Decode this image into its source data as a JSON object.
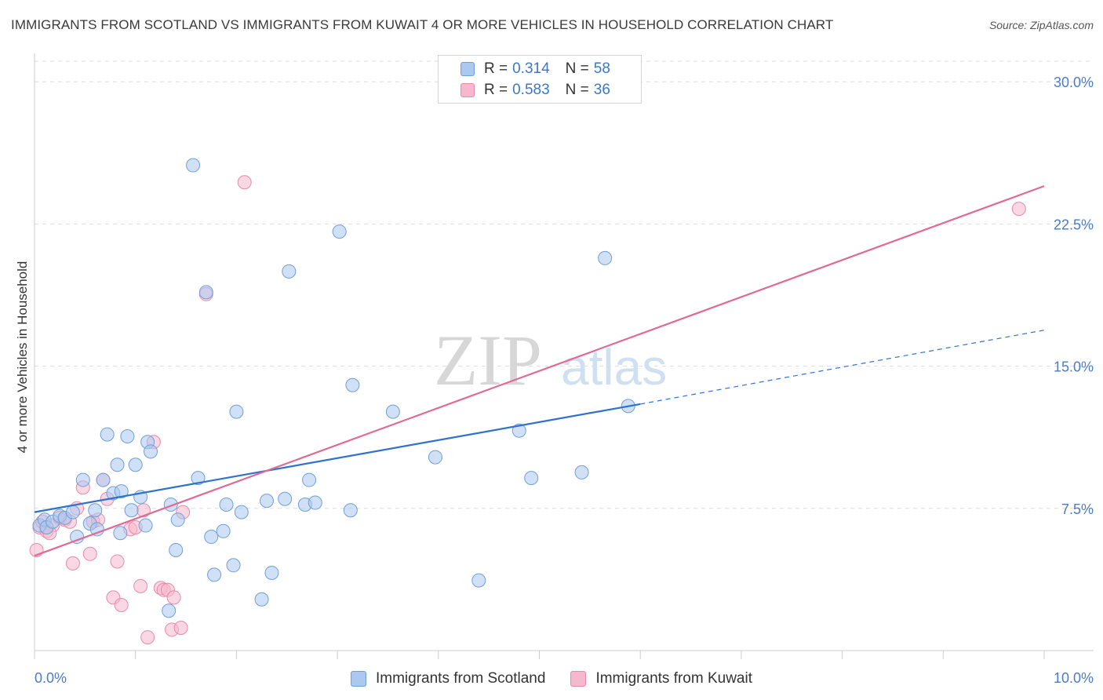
{
  "header": {
    "title": "IMMIGRANTS FROM SCOTLAND VS IMMIGRANTS FROM KUWAIT 4 OR MORE VEHICLES IN HOUSEHOLD CORRELATION CHART",
    "source": "Source: ZipAtlas.com"
  },
  "legend": {
    "r_label": "R =",
    "n_label": "N =",
    "scotland": {
      "r": "0.314",
      "n": "58"
    },
    "kuwait": {
      "r": "0.583",
      "n": "36"
    }
  },
  "watermark": {
    "zip": "ZIP",
    "atlas": "atlas"
  },
  "colors": {
    "scotland_fill": "#aac8f0",
    "scotland_stroke": "#6f9fd8",
    "scotland_line": "#2f72cc",
    "kuwait_fill": "#f6b8cc",
    "kuwait_stroke": "#e98aa8",
    "kuwait_line": "#e06a96",
    "grid": "#dddddd",
    "tick_text": "#4a7cc7"
  },
  "chart_data": {
    "type": "scatter",
    "title": "IMMIGRANTS FROM SCOTLAND VS IMMIGRANTS FROM KUWAIT 4 OR MORE VEHICLES IN HOUSEHOLD CORRELATION CHART",
    "xlabel": "",
    "ylabel": "4 or more Vehicles in Household",
    "xlim": [
      0,
      10
    ],
    "ylim": [
      0,
      31.5
    ],
    "x_tick_labels": [
      "0.0%",
      "10.0%"
    ],
    "y_ticks": [
      7.5,
      15.0,
      22.5,
      30.0
    ],
    "y_tick_labels": [
      "7.5%",
      "15.0%",
      "22.5%",
      "30.0%"
    ],
    "series": [
      {
        "name": "Immigrants from Scotland",
        "points": [
          [
            0.05,
            6.6
          ],
          [
            0.1,
            6.9
          ],
          [
            0.12,
            6.5
          ],
          [
            0.18,
            6.8
          ],
          [
            0.25,
            7.1
          ],
          [
            0.3,
            7.0
          ],
          [
            0.38,
            7.3
          ],
          [
            0.42,
            6.0
          ],
          [
            0.48,
            9.0
          ],
          [
            0.55,
            6.7
          ],
          [
            0.6,
            7.4
          ],
          [
            0.62,
            6.4
          ],
          [
            0.68,
            9.0
          ],
          [
            0.72,
            11.4
          ],
          [
            0.78,
            8.3
          ],
          [
            0.82,
            9.8
          ],
          [
            0.86,
            8.4
          ],
          [
            0.92,
            11.3
          ],
          [
            0.96,
            7.4
          ],
          [
            1.0,
            9.8
          ],
          [
            1.05,
            8.1
          ],
          [
            1.1,
            6.6
          ],
          [
            1.12,
            11.0
          ],
          [
            1.15,
            10.5
          ],
          [
            1.35,
            7.7
          ],
          [
            1.4,
            5.3
          ],
          [
            1.42,
            6.9
          ],
          [
            1.57,
            25.6
          ],
          [
            1.62,
            9.1
          ],
          [
            1.7,
            18.9
          ],
          [
            1.75,
            6.0
          ],
          [
            1.78,
            4.0
          ],
          [
            1.87,
            6.3
          ],
          [
            1.9,
            7.7
          ],
          [
            1.97,
            4.5
          ],
          [
            2.0,
            12.6
          ],
          [
            2.05,
            7.3
          ],
          [
            2.25,
            2.7
          ],
          [
            2.3,
            7.9
          ],
          [
            2.35,
            4.1
          ],
          [
            2.48,
            8.0
          ],
          [
            2.52,
            20.0
          ],
          [
            2.68,
            7.7
          ],
          [
            2.72,
            9.0
          ],
          [
            2.78,
            7.8
          ],
          [
            3.02,
            22.1
          ],
          [
            3.13,
            7.4
          ],
          [
            3.15,
            14.0
          ],
          [
            3.55,
            12.6
          ],
          [
            3.97,
            10.2
          ],
          [
            4.4,
            3.7
          ],
          [
            4.8,
            11.6
          ],
          [
            4.92,
            9.1
          ],
          [
            5.42,
            9.4
          ],
          [
            5.65,
            20.7
          ],
          [
            5.88,
            12.9
          ],
          [
            1.33,
            2.1
          ],
          [
            0.85,
            6.2
          ]
        ],
        "regression": {
          "x0": 0,
          "y0": 7.3,
          "x1": 6.0,
          "y1": 13.0,
          "dashed_to_x": 10,
          "dashed_to_y": 16.9
        }
      },
      {
        "name": "Immigrants from Kuwait",
        "points": [
          [
            0.02,
            5.3
          ],
          [
            0.05,
            6.5
          ],
          [
            0.08,
            6.8
          ],
          [
            0.12,
            6.3
          ],
          [
            0.18,
            6.6
          ],
          [
            0.25,
            7.0
          ],
          [
            0.3,
            6.9
          ],
          [
            0.35,
            6.8
          ],
          [
            0.38,
            4.6
          ],
          [
            0.42,
            7.5
          ],
          [
            0.48,
            8.6
          ],
          [
            0.55,
            5.1
          ],
          [
            0.58,
            6.8
          ],
          [
            0.63,
            6.9
          ],
          [
            0.68,
            9.0
          ],
          [
            0.72,
            8.0
          ],
          [
            0.78,
            2.8
          ],
          [
            0.82,
            4.7
          ],
          [
            0.86,
            2.4
          ],
          [
            0.95,
            6.4
          ],
          [
            1.0,
            6.5
          ],
          [
            1.05,
            3.4
          ],
          [
            1.08,
            7.4
          ],
          [
            1.12,
            0.7
          ],
          [
            1.18,
            11.0
          ],
          [
            1.25,
            3.3
          ],
          [
            1.28,
            3.2
          ],
          [
            1.32,
            3.2
          ],
          [
            1.36,
            1.1
          ],
          [
            1.38,
            2.8
          ],
          [
            1.45,
            1.2
          ],
          [
            1.47,
            7.3
          ],
          [
            1.7,
            18.8
          ],
          [
            2.08,
            24.7
          ],
          [
            9.75,
            23.3
          ],
          [
            0.15,
            6.2
          ]
        ],
        "regression": {
          "x0": 0,
          "y0": 5.0,
          "x1": 10,
          "y1": 24.5
        }
      }
    ]
  },
  "bottom_legend": {
    "scotland": "Immigrants from Scotland",
    "kuwait": "Immigrants from Kuwait"
  }
}
